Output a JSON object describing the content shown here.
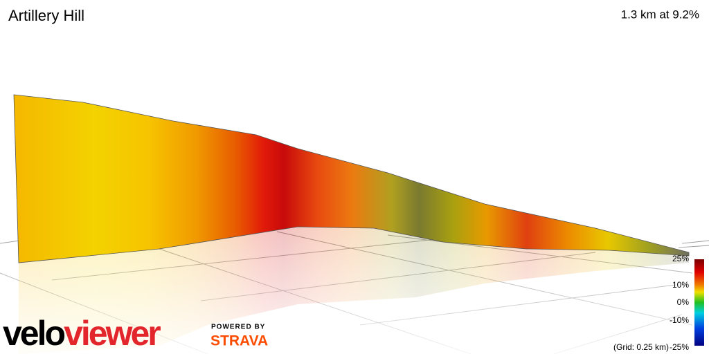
{
  "header": {
    "title": "Artillery Hill",
    "summary": "1.3 km at 9.2%"
  },
  "legend": {
    "ticks": [
      "25%",
      "10%",
      "0%",
      "-10%",
      "-25%"
    ],
    "grid_note": "(Grid: 0.25 km)"
  },
  "branding": {
    "logo_first": "velo",
    "logo_second": "viewer",
    "powered_by": "POWERED BY",
    "partner": "STRAVA"
  }
}
